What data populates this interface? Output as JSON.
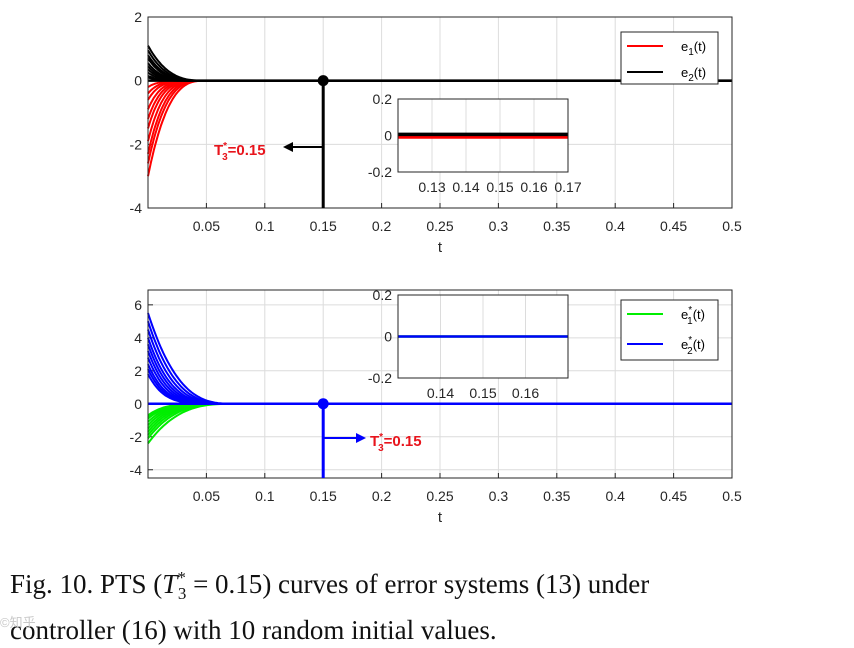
{
  "chart_data": [
    {
      "type": "line",
      "xlabel": "t",
      "xlim": [
        0,
        0.5
      ],
      "ylim": [
        -4,
        2
      ],
      "xticks": [
        0.05,
        0.1,
        0.15,
        0.2,
        0.25,
        0.3,
        0.35,
        0.4,
        0.45,
        0.5
      ],
      "xtick_labels": [
        "0.05",
        "0.1",
        "0.15",
        "0.2",
        "0.25",
        "0.3",
        "0.35",
        "0.4",
        "0.45",
        "0.5"
      ],
      "yticks": [
        -4,
        -2,
        0,
        2
      ],
      "ytick_labels": [
        "-4",
        "-2",
        "0",
        "2"
      ],
      "grid": true,
      "legend_position": "top-right",
      "legend": [
        {
          "label_base": "e",
          "label_sub": "1",
          "label_tail": "(t)",
          "color": "#ff0000"
        },
        {
          "label_base": "e",
          "label_sub": "2",
          "label_tail": "(t)",
          "color": "#000000"
        }
      ],
      "series": [
        {
          "name": "e1(t)",
          "color": "#ff0000",
          "initial_values": [
            -3.0,
            -2.6,
            -2.3,
            -1.9,
            -1.5,
            -1.2,
            -0.9,
            -0.6,
            -0.4,
            -0.2
          ],
          "settle_time": 0.05
        },
        {
          "name": "e2(t)",
          "color": "#000000",
          "initial_values": [
            1.1,
            0.95,
            0.8,
            0.7,
            0.55,
            0.45,
            0.35,
            0.25,
            0.15,
            0.1
          ],
          "settle_time": 0.05
        }
      ],
      "settling_marker": {
        "x": 0.15,
        "y": 0,
        "label_base": "T",
        "label_sub": "3",
        "label_sup": "*",
        "label_tail": "=0.15",
        "arrow_direction": "left"
      },
      "inset": {
        "xlim": [
          0.12,
          0.17
        ],
        "ylim": [
          -0.2,
          0.2
        ],
        "xticks": [
          0.13,
          0.14,
          0.15,
          0.16,
          0.17
        ],
        "xtick_labels": [
          "0.13",
          "0.14",
          "0.15",
          "0.16",
          "0.17"
        ],
        "yticks": [
          -0.2,
          0,
          0.2
        ],
        "ytick_labels": [
          "-0.2",
          "0",
          "0.2"
        ]
      }
    },
    {
      "type": "line",
      "xlabel": "t",
      "xlim": [
        0,
        0.5
      ],
      "ylim": [
        -4.5,
        6.9
      ],
      "xticks": [
        0.05,
        0.1,
        0.15,
        0.2,
        0.25,
        0.3,
        0.35,
        0.4,
        0.45,
        0.5
      ],
      "xtick_labels": [
        "0.05",
        "0.1",
        "0.15",
        "0.2",
        "0.25",
        "0.3",
        "0.35",
        "0.4",
        "0.45",
        "0.5"
      ],
      "yticks": [
        -4,
        -2,
        0,
        2,
        4,
        6
      ],
      "ytick_labels": [
        "-4",
        "-2",
        "0",
        "2",
        "4",
        "6"
      ],
      "grid": true,
      "legend_position": "top-right",
      "legend": [
        {
          "label_base": "e",
          "label_sub": "1",
          "label_sup": "*",
          "label_tail": "(t)",
          "color": "#00ee00"
        },
        {
          "label_base": "e",
          "label_sub": "2",
          "label_sup": "*",
          "label_tail": "(t)",
          "color": "#0000ff"
        }
      ],
      "series": [
        {
          "name": "e1*(t)",
          "color": "#00ee00",
          "initial_values": [
            -2.4,
            -2.1,
            -1.9,
            -1.7,
            -1.5,
            -1.3,
            -1.1,
            -0.9,
            -0.8,
            -0.7
          ],
          "settle_time": 0.075
        },
        {
          "name": "e2*(t)",
          "color": "#0000ff",
          "initial_values": [
            5.5,
            5.0,
            4.5,
            4.0,
            3.6,
            3.2,
            2.8,
            2.4,
            2.1,
            1.8
          ],
          "settle_time": 0.075
        }
      ],
      "settling_marker": {
        "x": 0.15,
        "y": 0,
        "label_base": "T",
        "label_sub": "3",
        "label_sup": "*",
        "label_tail": "=0.15",
        "arrow_direction": "right"
      },
      "inset": {
        "xlim": [
          0.13,
          0.17
        ],
        "ylim": [
          -0.2,
          0.2
        ],
        "xticks": [
          0.14,
          0.15,
          0.16
        ],
        "xtick_labels": [
          "0.14",
          "0.15",
          "0.16"
        ],
        "yticks": [
          -0.2,
          0,
          0.2
        ],
        "ytick_labels": [
          "-0.2",
          "0",
          "0.2"
        ]
      }
    }
  ],
  "caption": {
    "line1_pre": "Fig. 10. PTS (",
    "math": "T",
    "math_sub": "3",
    "math_sup": "*",
    "math_eq": " = 0.15",
    "line1_post": ") curves of error systems (13) under",
    "line2": "controller (16) with 10 random initial values."
  },
  "watermark": "©知乎"
}
